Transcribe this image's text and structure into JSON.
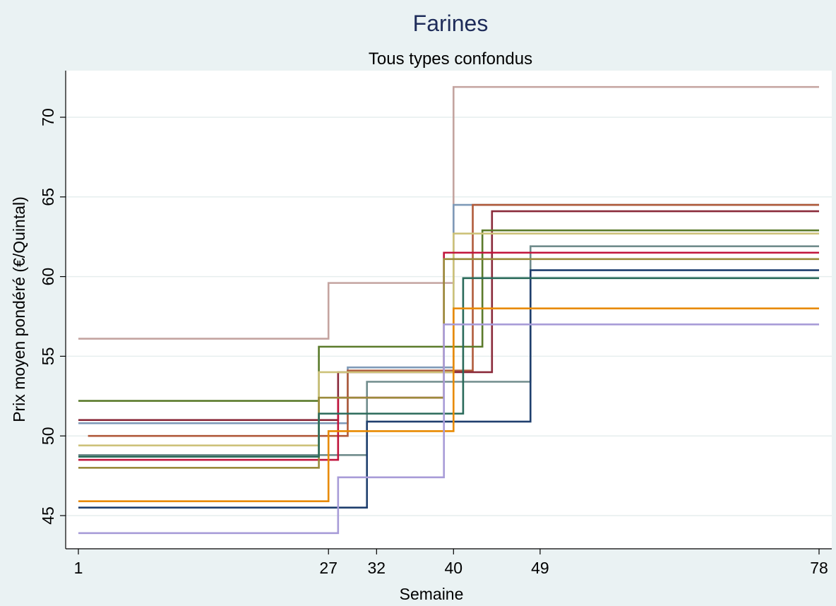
{
  "chart_data": {
    "type": "line",
    "step": true,
    "title": "Farines",
    "subtitle": "Tous types confondus",
    "xlabel": "Semaine",
    "ylabel": "Prix moyen pondéré (€/Quintal)",
    "xlim": [
      1,
      78
    ],
    "ylim": [
      43,
      72.5
    ],
    "xticks": [
      1,
      27,
      32,
      40,
      49,
      78
    ],
    "yticks": [
      45,
      50,
      55,
      60,
      65,
      70
    ],
    "grid": true,
    "legend": "none",
    "series": [
      {
        "color": "#c4a4a0",
        "x": [
          1,
          27,
          40,
          78
        ],
        "values": [
          56.1,
          59.6,
          71.9,
          71.9
        ]
      },
      {
        "color": "#7f9ab8",
        "x": [
          1,
          29,
          40,
          78
        ],
        "values": [
          50.8,
          54.3,
          64.5,
          64.5
        ]
      },
      {
        "color": "#b05a3a",
        "x": [
          2,
          29,
          42,
          78
        ],
        "values": [
          50.0,
          54.1,
          64.5,
          64.5
        ]
      },
      {
        "color": "#8a2a3a",
        "x": [
          1,
          28,
          44,
          78
        ],
        "values": [
          51.0,
          54.0,
          64.1,
          64.1
        ]
      },
      {
        "color": "#5a7a2a",
        "x": [
          1,
          26,
          43,
          78
        ],
        "values": [
          52.2,
          55.6,
          62.9,
          62.9
        ]
      },
      {
        "color": "#cdc27a",
        "x": [
          1,
          26,
          40,
          78
        ],
        "values": [
          49.4,
          54.0,
          62.7,
          62.7
        ]
      },
      {
        "color": "#708c8c",
        "x": [
          1,
          31,
          48,
          78
        ],
        "values": [
          48.8,
          53.4,
          61.9,
          61.9
        ]
      },
      {
        "color": "#c0143c",
        "x": [
          1,
          28,
          39,
          78
        ],
        "values": [
          48.5,
          52.4,
          61.5,
          61.5
        ]
      },
      {
        "color": "#9a8a3a",
        "x": [
          1,
          26,
          39,
          78
        ],
        "values": [
          48.0,
          52.4,
          61.1,
          61.1
        ]
      },
      {
        "color": "#1f3f6e",
        "x": [
          1,
          31,
          48,
          78
        ],
        "values": [
          45.5,
          50.9,
          60.4,
          60.4
        ]
      },
      {
        "color": "#2a6a5a",
        "x": [
          1,
          26,
          41,
          78
        ],
        "values": [
          48.7,
          51.4,
          59.9,
          59.9
        ]
      },
      {
        "color": "#e88a00",
        "x": [
          1,
          27,
          40,
          78
        ],
        "values": [
          45.9,
          50.3,
          58.0,
          58.0
        ]
      },
      {
        "color": "#a89cd8",
        "x": [
          1,
          28,
          39,
          78
        ],
        "values": [
          43.9,
          47.4,
          57.0,
          57.0
        ]
      }
    ]
  }
}
